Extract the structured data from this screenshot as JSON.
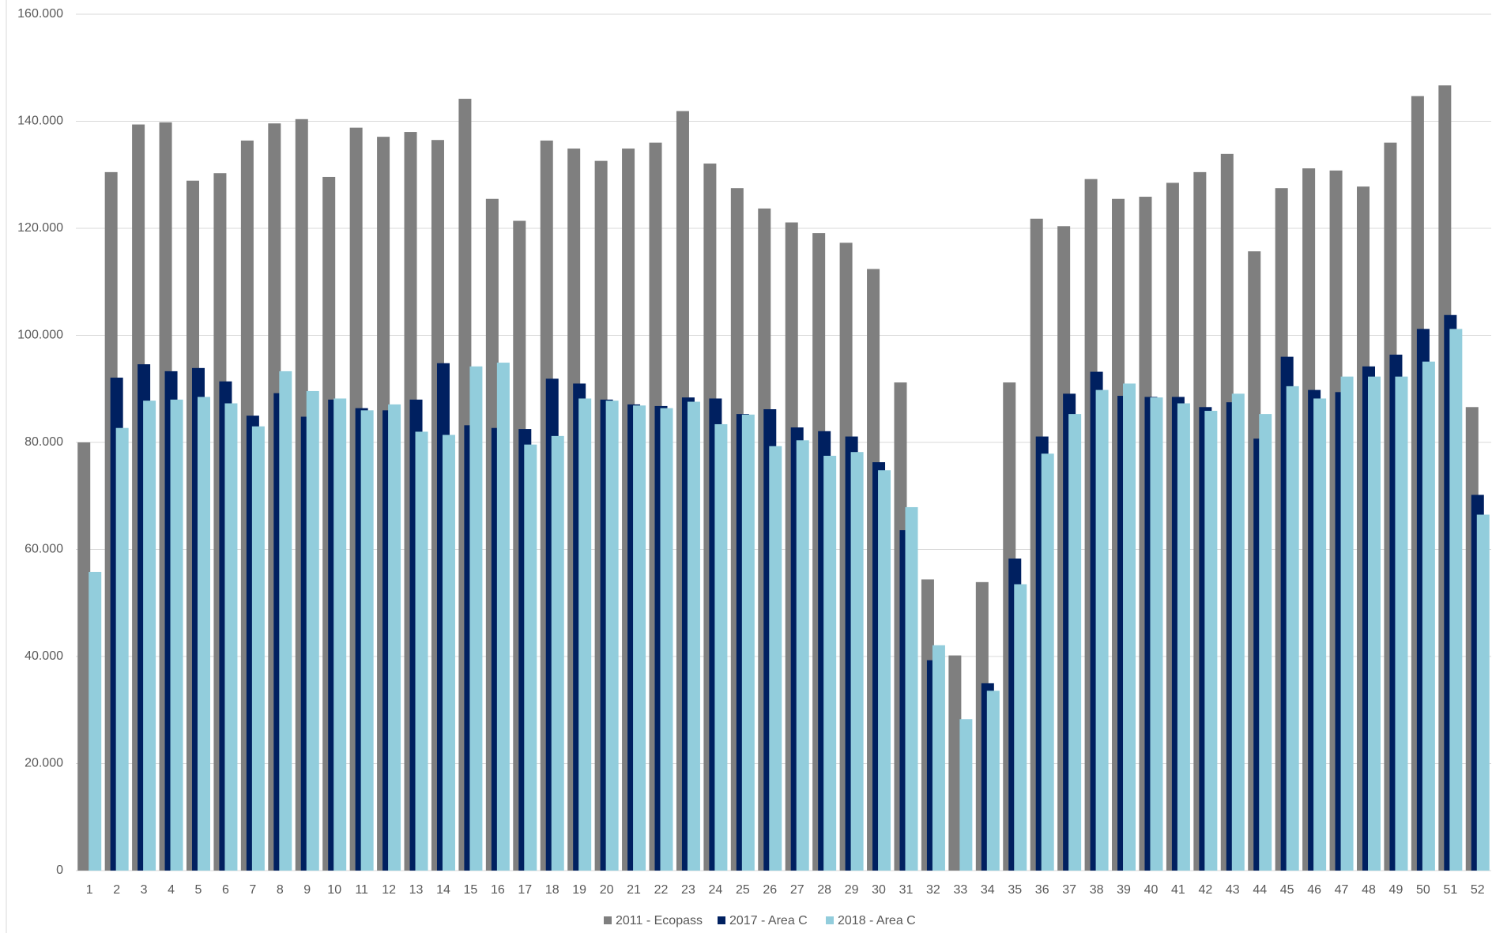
{
  "chart_data": {
    "type": "bar",
    "categories": [
      "1",
      "2",
      "3",
      "4",
      "5",
      "6",
      "7",
      "8",
      "9",
      "10",
      "11",
      "12",
      "13",
      "14",
      "15",
      "16",
      "17",
      "18",
      "19",
      "20",
      "21",
      "22",
      "23",
      "24",
      "25",
      "26",
      "27",
      "28",
      "29",
      "30",
      "31",
      "32",
      "33",
      "34",
      "35",
      "36",
      "37",
      "38",
      "39",
      "40",
      "41",
      "42",
      "43",
      "44",
      "45",
      "46",
      "47",
      "48",
      "49",
      "50",
      "51",
      "52"
    ],
    "series": [
      {
        "name": "2011 - Ecopass",
        "color": "#7f7f7f",
        "values": [
          80000,
          130500,
          139400,
          139800,
          128900,
          130300,
          136400,
          139600,
          140400,
          129600,
          138800,
          137100,
          138000,
          136500,
          144200,
          125500,
          121400,
          136400,
          134900,
          132600,
          134900,
          136000,
          141900,
          132100,
          127500,
          123700,
          121100,
          119100,
          117300,
          112400,
          91200,
          54400,
          40200,
          53900,
          91200,
          121800,
          120400,
          129200,
          125500,
          125900,
          128500,
          130500,
          133900,
          115700,
          127500,
          131200,
          130800,
          127800,
          136000,
          144700,
          146700,
          86600
        ]
      },
      {
        "name": "2017 - Area C",
        "color": "#002060",
        "values": [
          null,
          92100,
          94600,
          93300,
          93900,
          91400,
          85000,
          89200,
          84800,
          88000,
          86400,
          86000,
          88000,
          94800,
          83200,
          82700,
          82500,
          91900,
          91000,
          88000,
          87100,
          86800,
          88400,
          88200,
          85300,
          86200,
          82800,
          82100,
          81100,
          76300,
          63600,
          39300,
          null,
          35000,
          58300,
          81100,
          89100,
          93200,
          88700,
          88500,
          88500,
          86600,
          87500,
          80700,
          96000,
          89800,
          89400,
          94200,
          96400,
          101200,
          103800,
          70200
        ]
      },
      {
        "name": "2018 - Area C",
        "color": "#92cddc",
        "values": [
          55800,
          82700,
          87800,
          88000,
          88500,
          87300,
          83000,
          93300,
          89600,
          88200,
          86000,
          87100,
          82000,
          81400,
          94200,
          94900,
          79600,
          81200,
          88200,
          87800,
          86900,
          86400,
          87600,
          83400,
          85200,
          79300,
          80400,
          77500,
          78200,
          74800,
          67900,
          42100,
          28300,
          33600,
          53500,
          77900,
          85300,
          89800,
          91000,
          88400,
          87300,
          85900,
          89100,
          85300,
          90500,
          88200,
          92300,
          92300,
          92300,
          95100,
          101200,
          66500
        ]
      }
    ],
    "ylim": [
      0,
      160000
    ],
    "yticks": [
      0,
      {
        "value": 20000,
        "label": "20.000"
      },
      {
        "value": 40000,
        "label": "40.000"
      },
      {
        "value": 60000,
        "label": "60.000"
      },
      {
        "value": 80000,
        "label": "80.000"
      },
      {
        "value": 100000,
        "label": "100.000"
      },
      {
        "value": 120000,
        "label": "120.000"
      },
      {
        "value": 140000,
        "label": "140.000"
      },
      {
        "value": 160000,
        "label": "160.000"
      }
    ],
    "grid": true,
    "legend": "bottom"
  }
}
